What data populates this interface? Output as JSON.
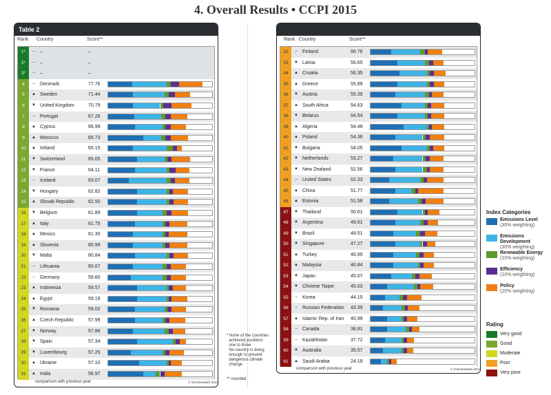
{
  "page_title": "4. Overall Results • CCPI 2015",
  "left_table": {
    "label": "Table 2",
    "col_rank": "Rank",
    "col_country": "Country",
    "col_score": "Score**",
    "footnote": "comparison with previous year",
    "copyright": "© Germanwatch 2014"
  },
  "right_table": {
    "col_rank": "Rank",
    "col_country": "Country",
    "col_score": "Score**",
    "footnote": "comparison with previous year",
    "copyright": "© Germanwatch 2014"
  },
  "notes": {
    "note1": "* None of the countries\n  achieved positions\n  one to three\n  No country is doing\n  enough to prevent\n  dangerous climate\n  change",
    "note2": "** rounded"
  },
  "legend": {
    "categories_title": "Index Categories",
    "categories": [
      {
        "name": "Emissions Level",
        "weight": "(30% weighting)",
        "color": "#1f6fb5"
      },
      {
        "name": "Emissions Development",
        "weight": "(30% weighting)",
        "color": "#3db4e6"
      },
      {
        "name": "Renewable Energy",
        "weight": "(10% weighting)",
        "color": "#5e9a2a"
      },
      {
        "name": "Efficiency",
        "weight": "(10% weighting)",
        "color": "#5b2e91"
      },
      {
        "name": "Policy",
        "weight": "(20% weighting)",
        "color": "#f07f12"
      }
    ],
    "rating_title": "Rating",
    "ratings": [
      {
        "name": "Very good",
        "color": "#1a7a28"
      },
      {
        "name": "Good",
        "color": "#7aa830"
      },
      {
        "name": "Moderate",
        "color": "#d3d623"
      },
      {
        "name": "Poor",
        "color": "#f0a020"
      },
      {
        "name": "Very poor",
        "color": "#8c1111"
      }
    ]
  },
  "chart_data": {
    "type": "table",
    "columns": [
      "Rank",
      "Trend",
      "Country",
      "Score"
    ],
    "rows": [
      {
        "rank": "1*",
        "trend": "–",
        "country": "–",
        "score": "–",
        "rating": "Very good",
        "parts": null
      },
      {
        "rank": "2*",
        "trend": "–",
        "country": "–",
        "score": "–",
        "rating": "Very good",
        "parts": null
      },
      {
        "rank": "3*",
        "trend": "–",
        "country": "–",
        "score": "–",
        "rating": "Very good",
        "parts": null
      },
      {
        "rank": "4",
        "trend": "–",
        "country": "Denmark",
        "score": "77.76",
        "rating": "Good",
        "parts": [
          23,
          33,
          4,
          8,
          23
        ]
      },
      {
        "rank": "5",
        "trend": "▲",
        "country": "Sweden",
        "score": "71.44",
        "rating": "Good",
        "parts": [
          24,
          30,
          4,
          6,
          15
        ]
      },
      {
        "rank": "6",
        "trend": "▼",
        "country": "United Kingdom",
        "score": "70.79",
        "rating": "Good",
        "parts": [
          24,
          26,
          3,
          8,
          19
        ]
      },
      {
        "rank": "7",
        "trend": "–",
        "country": "Portugal",
        "score": "67.26",
        "rating": "Good",
        "parts": [
          25,
          26,
          4,
          5,
          16
        ]
      },
      {
        "rank": "8",
        "trend": "▲",
        "country": "Cyprus",
        "score": "66.99",
        "rating": "Good",
        "parts": [
          26,
          26,
          3,
          5,
          15
        ]
      },
      {
        "rank": "9",
        "trend": "▲",
        "country": "Morocco",
        "score": "65.73",
        "rating": "Good",
        "parts": [
          34,
          17,
          4,
          5,
          17
        ]
      },
      {
        "rank": "10",
        "trend": "▲",
        "country": "Ireland",
        "score": "65.15",
        "rating": "Good",
        "parts": [
          24,
          32,
          6,
          4,
          5
        ]
      },
      {
        "rank": "11",
        "trend": "▼",
        "country": "Switzerland",
        "score": "65.05",
        "rating": "Good",
        "parts": [
          28,
          26,
          3,
          4,
          18
        ]
      },
      {
        "rank": "12",
        "trend": "▼",
        "country": "France",
        "score": "64.11",
        "rating": "Good",
        "parts": [
          26,
          30,
          3,
          6,
          13
        ]
      },
      {
        "rank": "13",
        "trend": "–",
        "country": "Iceland",
        "score": "63.07",
        "rating": "Good",
        "parts": [
          20,
          36,
          4,
          4,
          14
        ]
      },
      {
        "rank": "14",
        "trend": "▼",
        "country": "Hungary",
        "score": "62.82",
        "rating": "Good",
        "parts": [
          28,
          28,
          3,
          3,
          15
        ]
      },
      {
        "rank": "15",
        "trend": "▲",
        "country": "Slovak Republic",
        "score": "62.50",
        "rating": "Good",
        "parts": [
          28,
          28,
          3,
          4,
          14
        ]
      },
      {
        "rank": "16",
        "trend": "▼",
        "country": "Belgium",
        "score": "61.89",
        "rating": "Moderate",
        "parts": [
          28,
          24,
          4,
          5,
          16
        ]
      },
      {
        "rank": "17",
        "trend": "▲",
        "country": "Italy",
        "score": "61.75",
        "rating": "Moderate",
        "parts": [
          26,
          26,
          3,
          4,
          17
        ]
      },
      {
        "rank": "18",
        "trend": "▲",
        "country": "Mexico",
        "score": "61.30",
        "rating": "Moderate",
        "parts": [
          24,
          28,
          3,
          3,
          18
        ]
      },
      {
        "rank": "19",
        "trend": "▲",
        "country": "Slovenia",
        "score": "60.99",
        "rating": "Moderate",
        "parts": [
          24,
          28,
          3,
          4,
          17
        ]
      },
      {
        "rank": "20",
        "trend": "▼",
        "country": "Malta",
        "score": "60.84",
        "rating": "Moderate",
        "parts": [
          26,
          30,
          3,
          4,
          14
        ]
      },
      {
        "rank": "21",
        "trend": "–",
        "country": "Lithuania",
        "score": "60.07",
        "rating": "Moderate",
        "parts": [
          24,
          28,
          4,
          4,
          15
        ]
      },
      {
        "rank": "22",
        "trend": "–",
        "country": "Germany",
        "score": "59.60",
        "rating": "Moderate",
        "parts": [
          22,
          30,
          4,
          4,
          15
        ]
      },
      {
        "rank": "23",
        "trend": "▲",
        "country": "Indonesia",
        "score": "59.57",
        "rating": "Moderate",
        "parts": [
          28,
          28,
          2,
          4,
          13
        ]
      },
      {
        "rank": "24",
        "trend": "▲",
        "country": "Egypt",
        "score": "59.19",
        "rating": "Moderate",
        "parts": [
          28,
          28,
          2,
          3,
          15
        ]
      },
      {
        "rank": "25",
        "trend": "▼",
        "country": "Romania",
        "score": "59.02",
        "rating": "Moderate",
        "parts": [
          26,
          28,
          3,
          4,
          14
        ]
      },
      {
        "rank": "26",
        "trend": "▲",
        "country": "Czech Republic",
        "score": "57.99",
        "rating": "Moderate",
        "parts": [
          26,
          26,
          3,
          4,
          15
        ]
      },
      {
        "rank": "27",
        "trend": "▼",
        "country": "Norway",
        "score": "57.88",
        "rating": "Moderate",
        "parts": [
          24,
          30,
          4,
          4,
          12
        ]
      },
      {
        "rank": "28",
        "trend": "▼",
        "country": "Spain",
        "score": "57.34",
        "rating": "Moderate",
        "parts": [
          28,
          34,
          3,
          4,
          6
        ]
      },
      {
        "rank": "29",
        "trend": "▼",
        "country": "Luxembourg",
        "score": "57.25",
        "rating": "Moderate",
        "parts": [
          22,
          30,
          3,
          4,
          14
        ]
      },
      {
        "rank": "30",
        "trend": "▲",
        "country": "Ukraine",
        "score": "57.10",
        "rating": "Moderate",
        "parts": [
          30,
          26,
          2,
          2,
          11
        ]
      },
      {
        "rank": "31",
        "trend": "▲",
        "country": "India",
        "score": "56.97",
        "rating": "Moderate",
        "parts": [
          34,
          12,
          4,
          4,
          17
        ]
      },
      {
        "rank": "32",
        "trend": "–",
        "country": "Finland",
        "score": "56.76",
        "rating": "Poor",
        "parts": [
          20,
          28,
          4,
          3,
          14
        ]
      },
      {
        "rank": "33",
        "trend": "▼",
        "country": "Latvia",
        "score": "56.65",
        "rating": "Poor",
        "parts": [
          26,
          26,
          4,
          4,
          10
        ]
      },
      {
        "rank": "34",
        "trend": "▲",
        "country": "Croatia",
        "score": "56.35",
        "rating": "Poor",
        "parts": [
          28,
          26,
          3,
          4,
          11
        ]
      },
      {
        "rank": "35",
        "trend": "▲",
        "country": "Greece",
        "score": "55.89",
        "rating": "Poor",
        "parts": [
          26,
          28,
          3,
          4,
          10
        ]
      },
      {
        "rank": "36",
        "trend": "▼",
        "country": "Austria",
        "score": "55.39",
        "rating": "Poor",
        "parts": [
          24,
          28,
          4,
          3,
          11
        ]
      },
      {
        "rank": "37",
        "trend": "▲",
        "country": "South Africa",
        "score": "54.63",
        "rating": "Poor",
        "parts": [
          30,
          22,
          3,
          3,
          13
        ]
      },
      {
        "rank": "38",
        "trend": "▼",
        "country": "Belarus",
        "score": "54.54",
        "rating": "Poor",
        "parts": [
          26,
          26,
          3,
          3,
          13
        ]
      },
      {
        "rank": "39",
        "trend": "▲",
        "country": "Algeria",
        "score": "54.46",
        "rating": "Poor",
        "parts": [
          32,
          22,
          2,
          3,
          12
        ]
      },
      {
        "rank": "40",
        "trend": "▲",
        "country": "Poland",
        "score": "54.36",
        "rating": "Poor",
        "parts": [
          24,
          26,
          3,
          4,
          14
        ]
      },
      {
        "rank": "41",
        "trend": "▼",
        "country": "Bulgaria",
        "score": "54.05",
        "rating": "Poor",
        "parts": [
          30,
          24,
          3,
          3,
          11
        ]
      },
      {
        "rank": "42",
        "trend": "▼",
        "country": "Netherlands",
        "score": "53.27",
        "rating": "Poor",
        "parts": [
          22,
          28,
          3,
          4,
          13
        ]
      },
      {
        "rank": "43",
        "trend": "▼",
        "country": "New Zealand",
        "score": "52.56",
        "rating": "Poor",
        "parts": [
          24,
          26,
          4,
          3,
          13
        ]
      },
      {
        "rank": "44",
        "trend": "–",
        "country": "United States",
        "score": "52.33",
        "rating": "Poor",
        "parts": [
          18,
          30,
          3,
          3,
          16
        ]
      },
      {
        "rank": "45",
        "trend": "▲",
        "country": "China",
        "score": "51.77",
        "rating": "Poor",
        "parts": [
          24,
          16,
          3,
          3,
          24
        ]
      },
      {
        "rank": "46",
        "trend": "▲",
        "country": "Estonia",
        "score": "51.58",
        "rating": "Poor",
        "parts": [
          18,
          28,
          3,
          4,
          17
        ]
      },
      {
        "rank": "47",
        "trend": "▼",
        "country": "Thailand",
        "score": "50.61",
        "rating": "Very poor",
        "parts": [
          26,
          24,
          2,
          3,
          11
        ]
      },
      {
        "rank": "48",
        "trend": "▼",
        "country": "Argentina",
        "score": "49.61",
        "rating": "Very poor",
        "parts": [
          24,
          24,
          3,
          4,
          10
        ]
      },
      {
        "rank": "49",
        "trend": "▼",
        "country": "Brazil",
        "score": "48.51",
        "rating": "Very poor",
        "parts": [
          22,
          22,
          4,
          4,
          12
        ]
      },
      {
        "rank": "50",
        "trend": "▼",
        "country": "Singapore",
        "score": "47.27",
        "rating": "Very poor",
        "parts": [
          24,
          24,
          2,
          4,
          8
        ]
      },
      {
        "rank": "51",
        "trend": "▲",
        "country": "Turkey",
        "score": "46.95",
        "rating": "Very poor",
        "parts": [
          22,
          22,
          3,
          4,
          10
        ]
      },
      {
        "rank": "52",
        "trend": "▲",
        "country": "Malaysia",
        "score": "46.84",
        "rating": "Very poor",
        "parts": [
          22,
          24,
          2,
          3,
          10
        ]
      },
      {
        "rank": "53",
        "trend": "▼",
        "country": "Japan",
        "score": "45.07",
        "rating": "Very poor",
        "parts": [
          20,
          20,
          3,
          4,
          12
        ]
      },
      {
        "rank": "54",
        "trend": "▼",
        "country": "Chinese Taipei",
        "score": "45.03",
        "rating": "Very poor",
        "parts": [
          16,
          26,
          3,
          3,
          12
        ]
      },
      {
        "rank": "55",
        "trend": "–",
        "country": "Korea",
        "score": "44.15",
        "rating": "Very poor",
        "parts": [
          14,
          14,
          3,
          4,
          14
        ]
      },
      {
        "rank": "56",
        "trend": "–",
        "country": "Russian Federation",
        "score": "43.39",
        "rating": "Very poor",
        "parts": [
          12,
          18,
          3,
          3,
          11
        ]
      },
      {
        "rank": "57",
        "trend": "▲",
        "country": "Islamic Rep. of Iran",
        "score": "40.99",
        "rating": "Very poor",
        "parts": [
          16,
          14,
          2,
          3,
          10
        ]
      },
      {
        "rank": "58",
        "trend": "–",
        "country": "Canada",
        "score": "38.81",
        "rating": "Very poor",
        "parts": [
          16,
          18,
          3,
          3,
          7
        ]
      },
      {
        "rank": "59",
        "trend": "–",
        "country": "Kazakhstan",
        "score": "37.72",
        "rating": "Very poor",
        "parts": [
          14,
          16,
          2,
          3,
          7
        ]
      },
      {
        "rank": "60",
        "trend": "▼",
        "country": "Australia",
        "score": "35.57",
        "rating": "Very poor",
        "parts": [
          12,
          18,
          2,
          3,
          6
        ]
      },
      {
        "rank": "61",
        "trend": "▲",
        "country": "Saudi Arabia",
        "score": "24.19",
        "rating": "Very poor",
        "parts": [
          10,
          6,
          2,
          2,
          5
        ]
      }
    ]
  }
}
